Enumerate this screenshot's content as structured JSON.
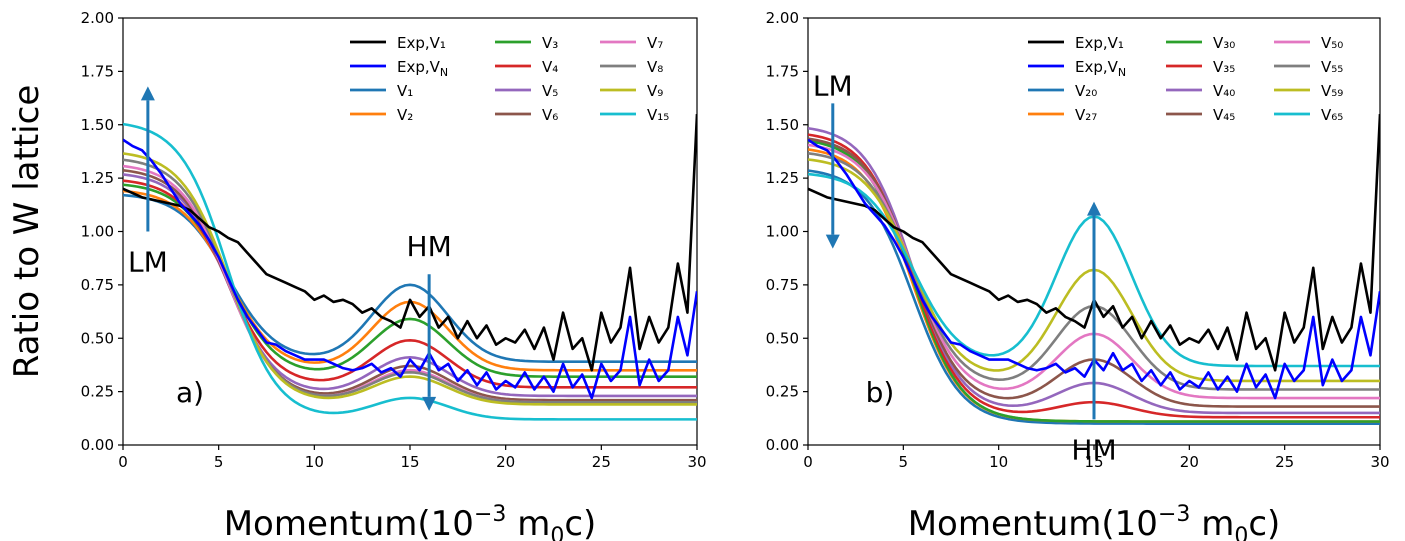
{
  "chart_data": [
    {
      "type": "line",
      "panel_label": "a)",
      "xlabel": "Momentum(10⁻³ m₀c)",
      "ylabel": "Ratio to W lattice",
      "xlim": [
        0,
        30
      ],
      "ylim": [
        0,
        2
      ],
      "xticks": [
        0,
        5,
        10,
        15,
        20,
        25,
        30
      ],
      "yticks": [
        0.0,
        0.25,
        0.5,
        0.75,
        1.0,
        1.25,
        1.5,
        1.75,
        2.0
      ],
      "ytick_labels": [
        "0.00",
        "0.25",
        "0.50",
        "0.75",
        "1.00",
        "1.25",
        "1.50",
        "1.75",
        "2.00"
      ],
      "legend_position": "top-right",
      "annotations": [
        {
          "text": "LM",
          "arrow": "up",
          "x": 1.3,
          "y_from": 1.0,
          "y_to": 1.68
        },
        {
          "text": "HM",
          "arrow": "down",
          "x": 16,
          "y_from": 0.8,
          "y_to": 0.16
        }
      ],
      "series": [
        {
          "name": "Exp,V₁",
          "color": "#000000",
          "kind": "exp",
          "x": [
            0,
            0.5,
            1,
            1.5,
            2,
            2.5,
            3,
            3.5,
            4,
            4.5,
            5,
            5.5,
            6,
            6.5,
            7,
            7.5,
            8,
            8.5,
            9,
            9.5,
            10,
            10.5,
            11,
            11.5,
            12,
            12.5,
            13,
            13.5,
            14,
            14.5,
            15,
            15.5,
            16,
            16.5,
            17,
            17.5,
            18,
            18.5,
            19,
            19.5,
            20,
            20.5,
            21,
            21.5,
            22,
            22.5,
            23,
            23.5,
            24,
            24.5,
            25,
            25.5,
            26,
            26.5,
            27,
            27.5,
            28,
            28.5,
            29,
            29.5,
            30
          ],
          "y": [
            1.2,
            1.18,
            1.16,
            1.15,
            1.14,
            1.13,
            1.12,
            1.1,
            1.06,
            1.02,
            1.0,
            0.97,
            0.95,
            0.9,
            0.85,
            0.8,
            0.78,
            0.76,
            0.74,
            0.72,
            0.68,
            0.7,
            0.67,
            0.68,
            0.66,
            0.62,
            0.64,
            0.6,
            0.58,
            0.55,
            0.68,
            0.6,
            0.65,
            0.55,
            0.6,
            0.5,
            0.58,
            0.5,
            0.56,
            0.47,
            0.5,
            0.48,
            0.54,
            0.45,
            0.55,
            0.4,
            0.62,
            0.45,
            0.5,
            0.35,
            0.62,
            0.48,
            0.55,
            0.83,
            0.45,
            0.6,
            0.48,
            0.55,
            0.85,
            0.62,
            1.55
          ]
        },
        {
          "name": "Exp,V_N",
          "color": "#0000ff",
          "kind": "exp",
          "x": [
            0,
            0.5,
            1,
            1.5,
            2,
            2.5,
            3,
            3.5,
            4,
            4.5,
            5,
            5.5,
            6,
            6.5,
            7,
            7.5,
            8,
            8.5,
            9,
            9.5,
            10,
            10.5,
            11,
            11.5,
            12,
            12.5,
            13,
            13.5,
            14,
            14.5,
            15,
            15.5,
            16,
            16.5,
            17,
            17.5,
            18,
            18.5,
            19,
            19.5,
            20,
            20.5,
            21,
            21.5,
            22,
            22.5,
            23,
            23.5,
            24,
            24.5,
            25,
            25.5,
            26,
            26.5,
            27,
            27.5,
            28,
            28.5,
            29,
            29.5,
            30
          ],
          "y": [
            1.43,
            1.4,
            1.38,
            1.33,
            1.27,
            1.2,
            1.13,
            1.08,
            1.03,
            0.96,
            0.88,
            0.78,
            0.68,
            0.6,
            0.54,
            0.48,
            0.47,
            0.44,
            0.42,
            0.4,
            0.4,
            0.4,
            0.38,
            0.36,
            0.35,
            0.36,
            0.38,
            0.34,
            0.36,
            0.32,
            0.4,
            0.35,
            0.43,
            0.35,
            0.38,
            0.3,
            0.35,
            0.28,
            0.34,
            0.26,
            0.3,
            0.27,
            0.34,
            0.26,
            0.32,
            0.25,
            0.38,
            0.27,
            0.33,
            0.22,
            0.38,
            0.3,
            0.35,
            0.6,
            0.28,
            0.4,
            0.3,
            0.35,
            0.6,
            0.42,
            0.72
          ]
        },
        {
          "name": "V₁",
          "color": "#1f77b4",
          "kind": "model",
          "L": 1.18,
          "H": 0.36,
          "T": 0.39
        },
        {
          "name": "V₂",
          "color": "#ff7f0e",
          "kind": "model",
          "L": 1.2,
          "H": 0.32,
          "T": 0.35
        },
        {
          "name": "V₃",
          "color": "#2ca02c",
          "kind": "model",
          "L": 1.23,
          "H": 0.27,
          "T": 0.32
        },
        {
          "name": "V₄",
          "color": "#d62728",
          "kind": "model",
          "L": 1.25,
          "H": 0.22,
          "T": 0.27
        },
        {
          "name": "V₅",
          "color": "#9467bd",
          "kind": "model",
          "L": 1.28,
          "H": 0.18,
          "T": 0.23
        },
        {
          "name": "V₆",
          "color": "#8c564b",
          "kind": "model",
          "L": 1.3,
          "H": 0.16,
          "T": 0.21
        },
        {
          "name": "V₇",
          "color": "#e377c2",
          "kind": "model",
          "L": 1.32,
          "H": 0.15,
          "T": 0.2
        },
        {
          "name": "V₈",
          "color": "#7f7f7f",
          "kind": "model",
          "L": 1.35,
          "H": 0.14,
          "T": 0.2
        },
        {
          "name": "V₉",
          "color": "#bcbd22",
          "kind": "model",
          "L": 1.38,
          "H": 0.13,
          "T": 0.19
        },
        {
          "name": "V₁₅",
          "color": "#17becf",
          "kind": "model",
          "L": 1.52,
          "H": 0.1,
          "T": 0.12
        }
      ]
    },
    {
      "type": "line",
      "panel_label": "b)",
      "xlabel": "Momentum(10⁻³ m₀c)",
      "ylabel": "",
      "xlim": [
        0,
        30
      ],
      "ylim": [
        0,
        2
      ],
      "xticks": [
        0,
        5,
        10,
        15,
        20,
        25,
        30
      ],
      "yticks": [
        0.0,
        0.25,
        0.5,
        0.75,
        1.0,
        1.25,
        1.5,
        1.75,
        2.0
      ],
      "ytick_labels": [
        "0.00",
        "0.25",
        "0.50",
        "0.75",
        "1.00",
        "1.25",
        "1.50",
        "1.75",
        "2.00"
      ],
      "legend_position": "top-right",
      "annotations": [
        {
          "text": "LM",
          "arrow": "down",
          "x": 1.3,
          "y_from": 1.6,
          "y_to": 0.92
        },
        {
          "text": "HM",
          "arrow": "up",
          "x": 15,
          "y_from": 0.12,
          "y_to": 1.14
        }
      ],
      "series": [
        {
          "name": "Exp,V₁",
          "color": "#000000",
          "kind": "exp",
          "ref": "0"
        },
        {
          "name": "Exp,V_N",
          "color": "#0000ff",
          "kind": "exp",
          "ref": "1"
        },
        {
          "name": "V₂₀",
          "color": "#1f77b4",
          "kind": "model",
          "L": 1.3,
          "H": 0.0,
          "T": 0.1
        },
        {
          "name": "V₂₇",
          "color": "#ff7f0e",
          "kind": "model",
          "L": 1.4,
          "H": 0.0,
          "T": 0.11
        },
        {
          "name": "V₃₀",
          "color": "#2ca02c",
          "kind": "model",
          "L": 1.44,
          "H": 0.0,
          "T": 0.11
        },
        {
          "name": "V₃₅",
          "color": "#d62728",
          "kind": "model",
          "L": 1.47,
          "H": 0.07,
          "T": 0.13
        },
        {
          "name": "V₄₀",
          "color": "#9467bd",
          "kind": "model",
          "L": 1.5,
          "H": 0.14,
          "T": 0.15
        },
        {
          "name": "V₄₅",
          "color": "#8c564b",
          "kind": "model",
          "L": 1.45,
          "H": 0.22,
          "T": 0.18
        },
        {
          "name": "V₅₀",
          "color": "#e377c2",
          "kind": "model",
          "L": 1.42,
          "H": 0.3,
          "T": 0.22
        },
        {
          "name": "V₅₅",
          "color": "#7f7f7f",
          "kind": "model",
          "L": 1.38,
          "H": 0.39,
          "T": 0.26
        },
        {
          "name": "V₅₉",
          "color": "#bcbd22",
          "kind": "model",
          "L": 1.35,
          "H": 0.52,
          "T": 0.3
        },
        {
          "name": "V₆₅",
          "color": "#17becf",
          "kind": "model",
          "L": 1.28,
          "H": 0.7,
          "T": 0.37
        }
      ]
    }
  ]
}
